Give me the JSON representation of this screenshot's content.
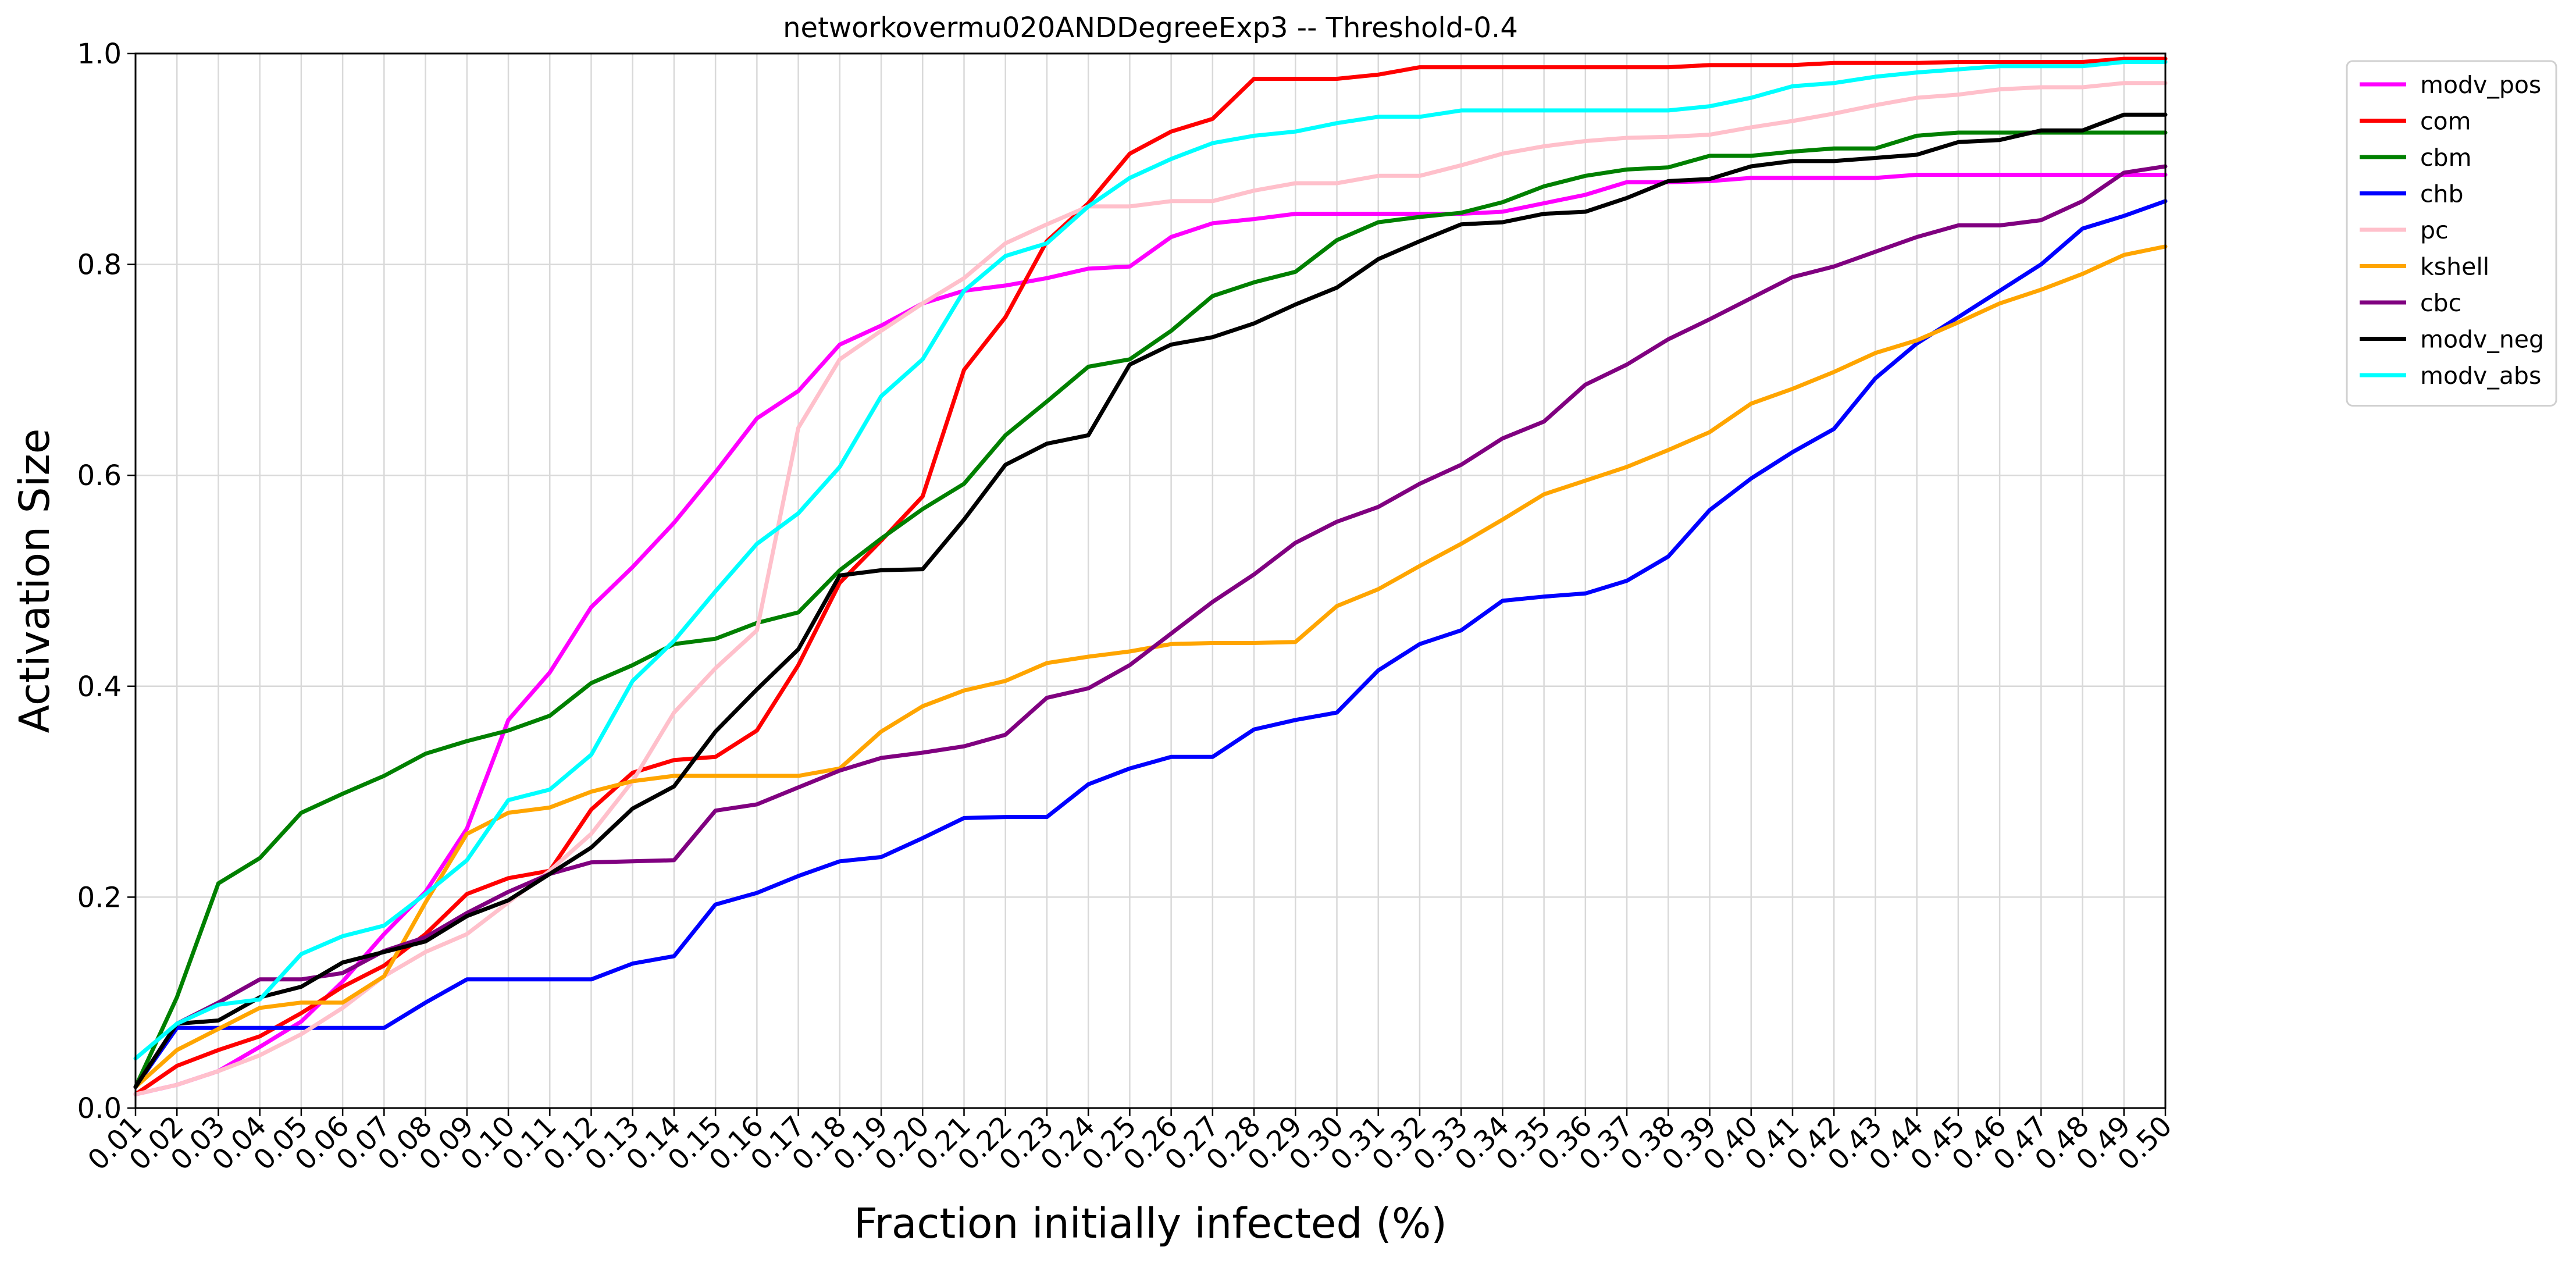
{
  "chart_data": {
    "type": "line",
    "title": "networkovermu020ANDDegreeExp3 -- Threshold-0.4",
    "xlabel": "Fraction initially infected (%)",
    "ylabel": "Activation Size",
    "ylim": [
      0,
      1.0
    ],
    "y_ticks": [
      "0.0",
      "0.2",
      "0.4",
      "0.6",
      "0.8",
      "1.0"
    ],
    "grid": true,
    "legend_position": "outside-top-right",
    "x": [
      "0.01",
      "0.02",
      "0.03",
      "0.04",
      "0.05",
      "0.06",
      "0.07",
      "0.08",
      "0.09",
      "0.10",
      "0.11",
      "0.12",
      "0.13",
      "0.14",
      "0.15",
      "0.16",
      "0.17",
      "0.18",
      "0.19",
      "0.20",
      "0.21",
      "0.22",
      "0.23",
      "0.24",
      "0.25",
      "0.26",
      "0.27",
      "0.28",
      "0.29",
      "0.30",
      "0.31",
      "0.32",
      "0.33",
      "0.34",
      "0.35",
      "0.36",
      "0.37",
      "0.38",
      "0.39",
      "0.40",
      "0.41",
      "0.42",
      "0.43",
      "0.44",
      "0.45",
      "0.46",
      "0.47",
      "0.48",
      "0.49",
      "0.50"
    ],
    "series": [
      {
        "name": "modv_pos",
        "color": "#ff00ff",
        "values": [
          0.013,
          0.022,
          0.035,
          0.058,
          0.082,
          0.12,
          0.165,
          0.205,
          0.265,
          0.368,
          0.413,
          0.475,
          0.513,
          0.555,
          0.603,
          0.654,
          0.68,
          0.724,
          0.742,
          0.763,
          0.775,
          0.78,
          0.787,
          0.796,
          0.798,
          0.826,
          0.839,
          0.843,
          0.848,
          0.848,
          0.848,
          0.848,
          0.848,
          0.85,
          0.858,
          0.866,
          0.878,
          0.878,
          0.879,
          0.882,
          0.882,
          0.882,
          0.882,
          0.885,
          0.885,
          0.885,
          0.885,
          0.885,
          0.885,
          0.885
        ]
      },
      {
        "name": "com",
        "color": "#ff0000",
        "values": [
          0.013,
          0.04,
          0.055,
          0.068,
          0.09,
          0.115,
          0.135,
          0.165,
          0.203,
          0.218,
          0.225,
          0.283,
          0.318,
          0.33,
          0.333,
          0.358,
          0.42,
          0.498,
          0.538,
          0.58,
          0.7,
          0.75,
          0.822,
          0.858,
          0.905,
          0.926,
          0.938,
          0.976,
          0.976,
          0.976,
          0.98,
          0.987,
          0.987,
          0.987,
          0.987,
          0.987,
          0.987,
          0.987,
          0.989,
          0.989,
          0.989,
          0.991,
          0.991,
          0.991,
          0.992,
          0.992,
          0.992,
          0.992,
          0.995,
          0.995
        ]
      },
      {
        "name": "cbm",
        "color": "#008000",
        "values": [
          0.02,
          0.105,
          0.213,
          0.237,
          0.28,
          0.298,
          0.315,
          0.336,
          0.348,
          0.358,
          0.372,
          0.403,
          0.42,
          0.44,
          0.445,
          0.46,
          0.47,
          0.51,
          0.54,
          0.568,
          0.592,
          0.638,
          0.67,
          0.703,
          0.71,
          0.737,
          0.77,
          0.783,
          0.793,
          0.823,
          0.84,
          0.845,
          0.849,
          0.859,
          0.874,
          0.884,
          0.89,
          0.892,
          0.903,
          0.903,
          0.907,
          0.91,
          0.91,
          0.922,
          0.925,
          0.925,
          0.925,
          0.925,
          0.925,
          0.925
        ]
      },
      {
        "name": "chb",
        "color": "#0000ff",
        "values": [
          0.02,
          0.076,
          0.076,
          0.076,
          0.076,
          0.076,
          0.076,
          0.1,
          0.122,
          0.122,
          0.122,
          0.122,
          0.137,
          0.144,
          0.193,
          0.204,
          0.22,
          0.234,
          0.238,
          0.256,
          0.275,
          0.276,
          0.276,
          0.307,
          0.322,
          0.333,
          0.333,
          0.359,
          0.368,
          0.375,
          0.415,
          0.44,
          0.453,
          0.481,
          0.485,
          0.488,
          0.5,
          0.523,
          0.567,
          0.597,
          0.622,
          0.644,
          0.692,
          0.725,
          0.75,
          0.775,
          0.8,
          0.834,
          0.846,
          0.86
        ]
      },
      {
        "name": "pc",
        "color": "#ffc0cb",
        "values": [
          0.013,
          0.022,
          0.035,
          0.05,
          0.07,
          0.095,
          0.125,
          0.148,
          0.165,
          0.195,
          0.225,
          0.26,
          0.31,
          0.375,
          0.417,
          0.453,
          0.645,
          0.71,
          0.737,
          0.763,
          0.787,
          0.82,
          0.838,
          0.855,
          0.855,
          0.86,
          0.86,
          0.87,
          0.877,
          0.877,
          0.884,
          0.884,
          0.894,
          0.905,
          0.912,
          0.917,
          0.92,
          0.921,
          0.923,
          0.93,
          0.936,
          0.943,
          0.951,
          0.958,
          0.961,
          0.966,
          0.968,
          0.968,
          0.972,
          0.972
        ]
      },
      {
        "name": "kshell",
        "color": "#ffa500",
        "values": [
          0.02,
          0.055,
          0.075,
          0.095,
          0.1,
          0.1,
          0.125,
          0.195,
          0.26,
          0.28,
          0.285,
          0.3,
          0.31,
          0.315,
          0.315,
          0.315,
          0.315,
          0.322,
          0.357,
          0.381,
          0.396,
          0.405,
          0.422,
          0.428,
          0.433,
          0.44,
          0.441,
          0.441,
          0.442,
          0.476,
          0.492,
          0.514,
          0.535,
          0.558,
          0.582,
          0.595,
          0.608,
          0.624,
          0.641,
          0.668,
          0.682,
          0.698,
          0.716,
          0.728,
          0.745,
          0.763,
          0.776,
          0.791,
          0.809,
          0.817
        ]
      },
      {
        "name": "cbc",
        "color": "#800080",
        "values": [
          0.02,
          0.08,
          0.1,
          0.122,
          0.122,
          0.128,
          0.149,
          0.162,
          0.185,
          0.205,
          0.222,
          0.233,
          0.234,
          0.235,
          0.282,
          0.288,
          0.304,
          0.32,
          0.332,
          0.337,
          0.343,
          0.354,
          0.389,
          0.398,
          0.42,
          0.45,
          0.48,
          0.506,
          0.536,
          0.556,
          0.57,
          0.592,
          0.61,
          0.635,
          0.651,
          0.686,
          0.705,
          0.729,
          0.748,
          0.768,
          0.788,
          0.798,
          0.812,
          0.826,
          0.837,
          0.837,
          0.842,
          0.86,
          0.887,
          0.893
        ]
      },
      {
        "name": "modv_neg",
        "color": "#000000",
        "values": [
          0.02,
          0.08,
          0.083,
          0.105,
          0.115,
          0.138,
          0.148,
          0.158,
          0.182,
          0.197,
          0.222,
          0.247,
          0.284,
          0.305,
          0.357,
          0.397,
          0.435,
          0.505,
          0.51,
          0.511,
          0.558,
          0.61,
          0.63,
          0.638,
          0.705,
          0.724,
          0.731,
          0.744,
          0.762,
          0.778,
          0.805,
          0.822,
          0.838,
          0.84,
          0.848,
          0.85,
          0.863,
          0.879,
          0.881,
          0.893,
          0.898,
          0.898,
          0.901,
          0.904,
          0.916,
          0.918,
          0.927,
          0.927,
          0.942,
          0.942
        ]
      },
      {
        "name": "modv_abs",
        "color": "#00ffff",
        "values": [
          0.047,
          0.08,
          0.098,
          0.103,
          0.146,
          0.163,
          0.173,
          0.203,
          0.235,
          0.292,
          0.302,
          0.335,
          0.405,
          0.443,
          0.49,
          0.535,
          0.564,
          0.608,
          0.675,
          0.71,
          0.775,
          0.808,
          0.82,
          0.855,
          0.882,
          0.9,
          0.915,
          0.922,
          0.926,
          0.934,
          0.94,
          0.94,
          0.946,
          0.946,
          0.946,
          0.946,
          0.946,
          0.946,
          0.95,
          0.958,
          0.969,
          0.972,
          0.978,
          0.982,
          0.985,
          0.988,
          0.988,
          0.988,
          0.992,
          0.992
        ]
      }
    ]
  }
}
